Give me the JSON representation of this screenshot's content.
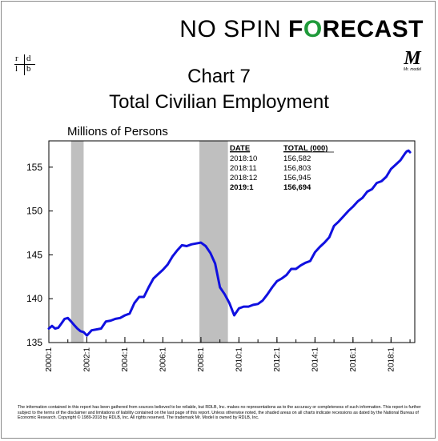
{
  "brand": {
    "part1": "NO SPIN ",
    "o_glyph": "O",
    "part2a": "F",
    "part2b": "RECAST"
  },
  "logo": {
    "tl": "r",
    "tr": "d",
    "bl": "l",
    "br": "b"
  },
  "mr_model": {
    "mark": "M",
    "sub": "Mr. model"
  },
  "title_line1": "Chart 7",
  "title_line2": "Total Civilian Employment",
  "y_axis_label": "Millions of Persons",
  "table": {
    "headers": [
      "DATE",
      "TOTAL (000)"
    ],
    "rows": [
      {
        "date": "2018:10",
        "total": "156,582",
        "bold": false
      },
      {
        "date": "2018:11",
        "total": "156,803",
        "bold": false
      },
      {
        "date": "2018:12",
        "total": "156,945",
        "bold": false
      },
      {
        "date": "2019:1",
        "total": "156,694",
        "bold": true
      }
    ]
  },
  "disclaimer": "The information contained in this report has been gathered from sources believed to be reliable, but RDLB, Inc. makes no representations as to the accuracy or completeness of such information. This report is further subject to the terms of the disclaimer and limitations of liability contained on the last page of this report. Unless otherwise noted, the shaded areas on all charts indicate recessions as dated by the National Bureau of Economic Research. Copyright © 1989-2018 by RDLB, Inc. All rights reserved. The trademark Mr. Model is owned by RDLB, Inc.",
  "colors": {
    "line": "#1010e0",
    "recession": "#bfbfbf",
    "brand_green": "#1f9a3a"
  },
  "chart_data": {
    "type": "line",
    "ylim": [
      135,
      158
    ],
    "xlim": [
      2000.0,
      2019.25
    ],
    "y_ticks": [
      135,
      140,
      145,
      150,
      155
    ],
    "x_ticks": [
      {
        "label": "2000:1",
        "x": 2000.0
      },
      {
        "label": "2002:1",
        "x": 2002.0
      },
      {
        "label": "2004:1",
        "x": 2004.0
      },
      {
        "label": "2006:1",
        "x": 2006.0
      },
      {
        "label": "2008:1",
        "x": 2008.0
      },
      {
        "label": "2010:1",
        "x": 2010.0
      },
      {
        "label": "2012:1",
        "x": 2012.0
      },
      {
        "label": "2014:1",
        "x": 2014.0
      },
      {
        "label": "2016:1",
        "x": 2016.0
      },
      {
        "label": "2018:1",
        "x": 2018.0
      }
    ],
    "recessions": [
      [
        2001.17,
        2001.83
      ],
      [
        2007.92,
        2009.42
      ]
    ],
    "series": [
      {
        "x": [
          2000.0,
          2000.17,
          2000.33,
          2000.5,
          2000.67,
          2000.83,
          2001.0,
          2001.17,
          2001.33,
          2001.5,
          2001.67,
          2001.83,
          2002.0,
          2002.25,
          2002.5,
          2002.75,
          2003.0,
          2003.25,
          2003.5,
          2003.75,
          2004.0,
          2004.25,
          2004.5,
          2004.75,
          2005.0,
          2005.25,
          2005.5,
          2005.75,
          2006.0,
          2006.25,
          2006.5,
          2006.75,
          2007.0,
          2007.25,
          2007.5,
          2007.75,
          2008.0,
          2008.25,
          2008.5,
          2008.75,
          2009.0,
          2009.25,
          2009.5,
          2009.75,
          2010.0,
          2010.25,
          2010.5,
          2010.75,
          2011.0,
          2011.25,
          2011.5,
          2011.75,
          2012.0,
          2012.25,
          2012.5,
          2012.75,
          2013.0,
          2013.25,
          2013.5,
          2013.75,
          2014.0,
          2014.25,
          2014.5,
          2014.75,
          2015.0,
          2015.25,
          2015.5,
          2015.75,
          2016.0,
          2016.25,
          2016.5,
          2016.75,
          2017.0,
          2017.25,
          2017.5,
          2017.75,
          2018.0,
          2018.25,
          2018.5,
          2018.75,
          2018.83,
          2018.92,
          2019.0
        ],
        "values": [
          136.6,
          136.9,
          136.6,
          136.7,
          137.2,
          137.7,
          137.8,
          137.4,
          137.0,
          136.6,
          136.3,
          136.2,
          135.8,
          136.4,
          136.5,
          136.6,
          137.4,
          137.5,
          137.7,
          137.8,
          138.1,
          138.3,
          139.5,
          140.2,
          140.2,
          141.3,
          142.3,
          142.8,
          143.3,
          143.9,
          144.8,
          145.5,
          146.1,
          146.0,
          146.2,
          146.3,
          146.4,
          146.0,
          145.2,
          144.0,
          141.3,
          140.5,
          139.5,
          138.1,
          138.9,
          139.1,
          139.1,
          139.3,
          139.4,
          139.8,
          140.5,
          141.3,
          142.0,
          142.3,
          142.7,
          143.4,
          143.4,
          143.8,
          144.1,
          144.3,
          145.3,
          145.9,
          146.4,
          147.0,
          148.3,
          148.8,
          149.4,
          150.0,
          150.5,
          151.1,
          151.5,
          152.2,
          152.5,
          153.2,
          153.4,
          153.9,
          154.8,
          155.3,
          155.8,
          156.6,
          156.8,
          156.9,
          156.7
        ]
      }
    ]
  }
}
